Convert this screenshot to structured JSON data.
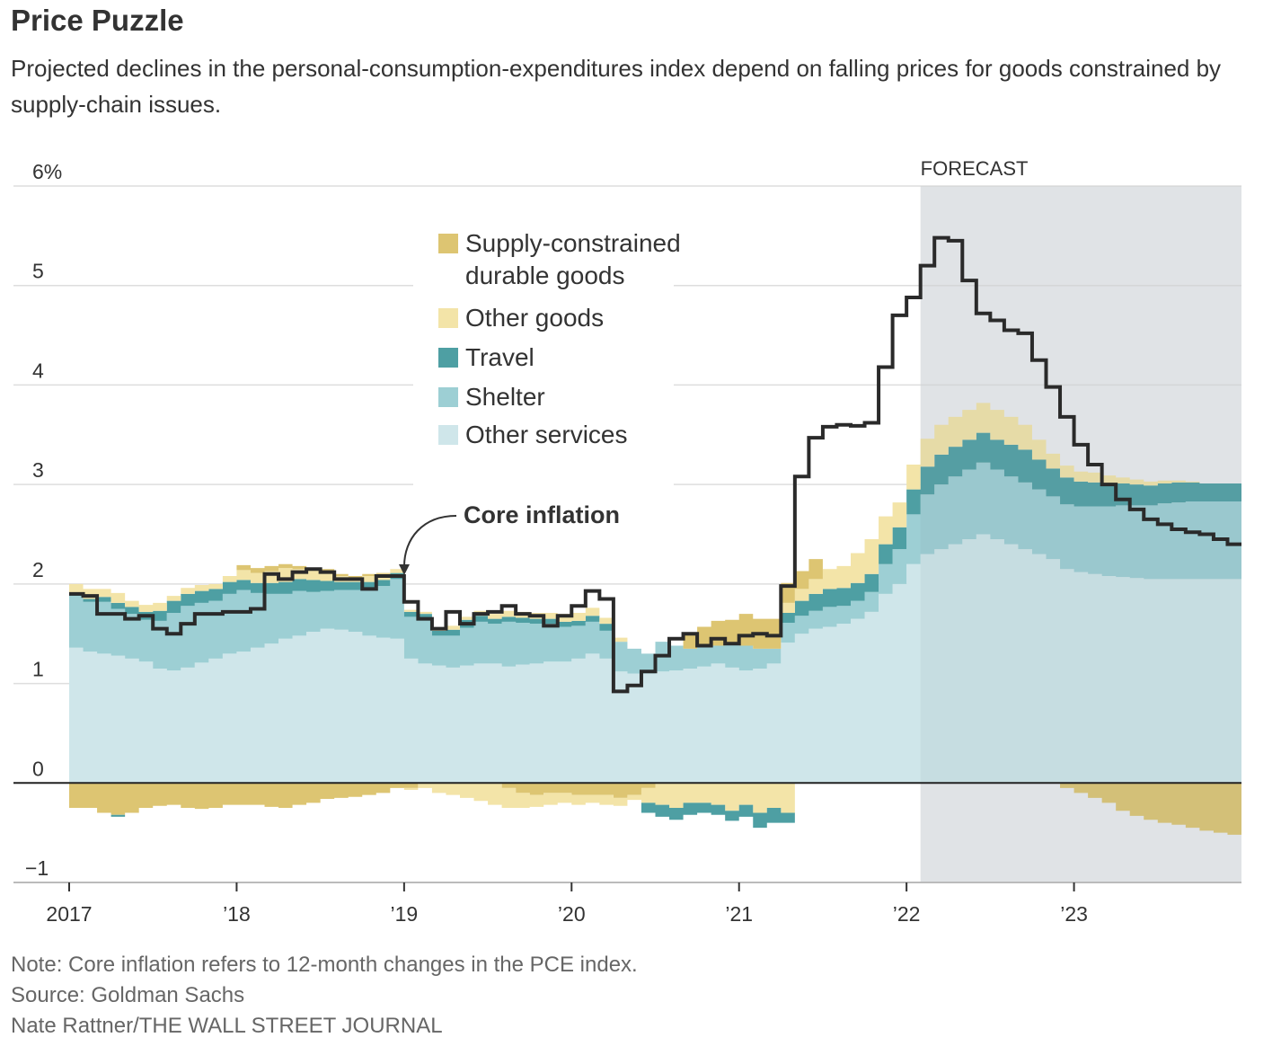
{
  "title": "Price Puzzle",
  "subtitle": "Projected declines in the personal-consumption-expenditures index depend on falling prices for goods constrained by supply-chain issues.",
  "note": "Note: Core inflation refers to 12-month changes in the PCE index.",
  "source": "Source: Goldman Sachs",
  "credit": "Nate Rattner/THE WALL STREET JOURNAL",
  "chart_data": {
    "type": "area",
    "subtype": "stacked-step-area-with-line",
    "x_start": "2017-01",
    "x_end": "2023-12",
    "x_tick_labels": [
      "2017",
      "’18",
      "’19",
      "’20",
      "’21",
      "’22",
      "’23"
    ],
    "y_tick_labels": [
      "6%",
      "5",
      "4",
      "3",
      "2",
      "1",
      "0",
      "−1"
    ],
    "ylim": [
      -1,
      6
    ],
    "grid": true,
    "forecast_label": "FORECAST",
    "forecast_start": "2022-02",
    "line_annotation": "Core inflation",
    "legend_position": "top-center",
    "series": [
      {
        "name": "Other services",
        "color": "#cfe6ea",
        "values": [
          1.36,
          1.32,
          1.3,
          1.28,
          1.25,
          1.22,
          1.15,
          1.13,
          1.16,
          1.21,
          1.25,
          1.3,
          1.32,
          1.36,
          1.4,
          1.45,
          1.48,
          1.52,
          1.55,
          1.54,
          1.52,
          1.48,
          1.46,
          1.45,
          1.25,
          1.2,
          1.18,
          1.16,
          1.18,
          1.2,
          1.2,
          1.17,
          1.19,
          1.2,
          1.22,
          1.22,
          1.25,
          1.3,
          1.25,
          1.12,
          1.1,
          1.1,
          1.12,
          1.13,
          1.15,
          1.17,
          1.2,
          1.16,
          1.13,
          1.15,
          1.2,
          1.41,
          1.5,
          1.55,
          1.57,
          1.6,
          1.65,
          1.72,
          1.9,
          2.0,
          2.2,
          2.3,
          2.35,
          2.4,
          2.45,
          2.5,
          2.45,
          2.4,
          2.35,
          2.3,
          2.25,
          2.15,
          2.12,
          2.1,
          2.08,
          2.07,
          2.06,
          2.05,
          2.05,
          2.05,
          2.05,
          2.05,
          2.05,
          2.05
        ]
      },
      {
        "name": "Shelter",
        "color": "#9dcfd4",
        "values": [
          0.52,
          0.5,
          0.52,
          0.47,
          0.45,
          0.42,
          0.48,
          0.58,
          0.62,
          0.6,
          0.58,
          0.6,
          0.62,
          0.55,
          0.5,
          0.45,
          0.45,
          0.4,
          0.38,
          0.4,
          0.42,
          0.48,
          0.52,
          0.6,
          0.42,
          0.45,
          0.3,
          0.32,
          0.38,
          0.42,
          0.4,
          0.45,
          0.42,
          0.4,
          0.38,
          0.35,
          0.33,
          0.32,
          0.28,
          0.3,
          0.25,
          0.2,
          0.3,
          0.25,
          0.2,
          0.2,
          0.18,
          0.23,
          0.25,
          0.2,
          0.15,
          0.2,
          0.18,
          0.18,
          0.2,
          0.18,
          0.18,
          0.2,
          0.3,
          0.35,
          0.5,
          0.6,
          0.65,
          0.68,
          0.7,
          0.72,
          0.7,
          0.68,
          0.67,
          0.65,
          0.63,
          0.65,
          0.66,
          0.68,
          0.7,
          0.72,
          0.73,
          0.74,
          0.76,
          0.77,
          0.78,
          0.78,
          0.78,
          0.78
        ]
      },
      {
        "name": "Travel",
        "color": "#4e9fa3",
        "values": [
          0.02,
          0.03,
          0.05,
          0.06,
          0.07,
          0.08,
          0.1,
          0.12,
          0.12,
          0.12,
          0.12,
          0.12,
          0.1,
          0.1,
          0.11,
          0.12,
          0.12,
          0.12,
          0.1,
          0.08,
          0.08,
          0.06,
          0.06,
          0.06,
          0.05,
          0.05,
          0.05,
          0.06,
          0.08,
          0.06,
          0.05,
          0.05,
          0.05,
          0.05,
          0.05,
          0.05,
          0.05,
          0.06,
          0.07,
          0.0,
          0.0,
          0.0,
          0.0,
          0.0,
          0.0,
          0.0,
          0.0,
          0.0,
          0.0,
          0.0,
          0.0,
          0.1,
          0.15,
          0.17,
          0.18,
          0.18,
          0.18,
          0.18,
          0.2,
          0.22,
          0.25,
          0.28,
          0.3,
          0.3,
          0.3,
          0.3,
          0.3,
          0.32,
          0.33,
          0.3,
          0.28,
          0.27,
          0.25,
          0.24,
          0.23,
          0.22,
          0.21,
          0.2,
          0.2,
          0.2,
          0.19,
          0.18,
          0.18,
          0.18
        ]
      },
      {
        "name": "Other goods",
        "color": "#f3e4a8",
        "values": [
          0.1,
          0.1,
          0.08,
          0.1,
          0.06,
          0.07,
          0.08,
          0.05,
          0.06,
          0.06,
          0.05,
          0.06,
          0.1,
          0.1,
          0.12,
          0.14,
          0.1,
          0.1,
          0.1,
          0.06,
          0.04,
          0.06,
          0.06,
          0.04,
          0.02,
          0.02,
          0.03,
          0.04,
          0.03,
          0.05,
          0.05,
          0.06,
          0.06,
          0.06,
          0.06,
          0.08,
          0.08,
          0.08,
          0.06,
          0.04,
          0.0,
          0.0,
          0.0,
          0.0,
          0.0,
          0.0,
          0.0,
          0.0,
          0.0,
          0.0,
          0.0,
          0.1,
          0.12,
          0.15,
          0.2,
          0.22,
          0.3,
          0.35,
          0.28,
          0.25,
          0.25,
          0.28,
          0.3,
          0.3,
          0.3,
          0.3,
          0.3,
          0.28,
          0.25,
          0.2,
          0.15,
          0.12,
          0.1,
          0.1,
          0.08,
          0.06,
          0.05,
          0.04,
          0.03,
          0.02,
          0.01,
          0.0,
          0.0,
          0.0
        ]
      },
      {
        "name": "Supply-constrained durable goods",
        "color": "#ddc572",
        "values": [
          0.0,
          0.0,
          0.0,
          0.0,
          0.0,
          0.0,
          0.0,
          0.0,
          0.0,
          0.0,
          0.0,
          0.0,
          0.05,
          0.05,
          0.05,
          0.04,
          0.03,
          0.02,
          0.02,
          0.02,
          0.02,
          0.02,
          0.01,
          0.0,
          0.0,
          0.0,
          0.0,
          0.0,
          0.0,
          0.0,
          0.0,
          0.0,
          0.0,
          0.0,
          0.0,
          0.0,
          0.0,
          0.0,
          0.0,
          0.0,
          0.0,
          0.0,
          0.0,
          0.0,
          0.15,
          0.2,
          0.25,
          0.25,
          0.32,
          0.3,
          0.3,
          0.2,
          0.18,
          0.2,
          0.0,
          0.0,
          0.0,
          0.0,
          0.0,
          0.0,
          0.0,
          0.0,
          0.0,
          0.0,
          0.0,
          0.0,
          0.0,
          0.0,
          0.0,
          0.0,
          0.0,
          0.0,
          0.0,
          0.0,
          0.0,
          0.0,
          0.0,
          0.0,
          0.0,
          0.0,
          0.0,
          0.0,
          0.0,
          0.0
        ]
      }
    ],
    "negative_series": [
      {
        "name": "Supply-constrained durable goods",
        "color": "#ddc572",
        "values": [
          -0.25,
          -0.25,
          -0.3,
          -0.32,
          -0.3,
          -0.25,
          -0.23,
          -0.22,
          -0.25,
          -0.26,
          -0.25,
          -0.22,
          -0.22,
          -0.22,
          -0.24,
          -0.25,
          -0.22,
          -0.2,
          -0.16,
          -0.15,
          -0.14,
          -0.12,
          -0.1,
          -0.05,
          -0.05,
          0.0,
          0.0,
          0.0,
          0.0,
          0.0,
          0.0,
          -0.05,
          -0.1,
          -0.12,
          -0.1,
          -0.1,
          -0.12,
          -0.12,
          -0.12,
          -0.15,
          -0.12,
          -0.05,
          0.0,
          0.0,
          0.0,
          0.0,
          0.0,
          0.0,
          0.0,
          0.0,
          0.0,
          0.0,
          0.0,
          0.0,
          0.0,
          0.0,
          0.0,
          0.0,
          0.0,
          0.0,
          0.0,
          0.0,
          0.0,
          0.0,
          0.0,
          0.0,
          0.0,
          0.0,
          0.0,
          0.0,
          0.0,
          -0.05,
          -0.1,
          -0.15,
          -0.2,
          -0.28,
          -0.33,
          -0.37,
          -0.4,
          -0.42,
          -0.45,
          -0.48,
          -0.5,
          -0.52
        ]
      },
      {
        "name": "Other goods",
        "color": "#f3e4a8",
        "values": [
          0.0,
          0.0,
          0.0,
          0.0,
          0.0,
          0.0,
          0.0,
          0.0,
          0.0,
          0.0,
          0.0,
          0.0,
          0.0,
          0.0,
          0.0,
          0.0,
          0.0,
          0.0,
          0.0,
          0.0,
          0.0,
          0.0,
          0.0,
          0.0,
          -0.02,
          -0.05,
          -0.1,
          -0.12,
          -0.15,
          -0.18,
          -0.22,
          -0.2,
          -0.15,
          -0.12,
          -0.12,
          -0.1,
          -0.1,
          -0.08,
          -0.1,
          -0.08,
          -0.05,
          -0.15,
          -0.22,
          -0.25,
          -0.2,
          -0.2,
          -0.22,
          -0.28,
          -0.22,
          -0.3,
          -0.25,
          -0.3,
          0.0,
          0.0,
          0.0,
          0.0,
          0.0,
          0.0,
          0.0,
          0.0,
          0.0,
          0.0,
          0.0,
          0.0,
          0.0,
          0.0,
          0.0,
          0.0,
          0.0,
          0.0,
          0.0,
          0.0,
          0.0,
          0.0,
          0.0,
          0.0,
          0.0,
          0.0,
          0.0,
          0.0,
          0.0,
          0.0,
          0.0,
          0.0
        ]
      },
      {
        "name": "Travel",
        "color": "#4e9fa3",
        "values": [
          0.0,
          0.0,
          0.0,
          -0.02,
          0.0,
          0.0,
          0.0,
          0.0,
          0.0,
          0.0,
          0.0,
          0.0,
          0.0,
          0.0,
          0.0,
          0.0,
          0.0,
          0.0,
          0.0,
          0.0,
          0.0,
          0.0,
          0.0,
          0.0,
          0.0,
          0.0,
          0.0,
          0.0,
          0.0,
          0.0,
          0.0,
          0.0,
          0.0,
          0.0,
          0.0,
          0.0,
          0.0,
          0.0,
          0.0,
          0.0,
          0.0,
          -0.1,
          -0.12,
          -0.12,
          -0.12,
          -0.1,
          -0.1,
          -0.1,
          -0.12,
          -0.15,
          -0.15,
          -0.1,
          0.0,
          0.0,
          0.0,
          0.0,
          0.0,
          0.0,
          0.0,
          0.0,
          0.0,
          0.0,
          0.0,
          0.0,
          0.0,
          0.0,
          0.0,
          0.0,
          0.0,
          0.0,
          0.0,
          0.0,
          0.0,
          0.0,
          0.0,
          0.0,
          0.0,
          0.0,
          0.0,
          0.0,
          0.0,
          0.0,
          0.0,
          0.0
        ]
      }
    ],
    "line": {
      "name": "Core inflation",
      "color": "#2a2a2a",
      "values": [
        1.9,
        1.88,
        1.7,
        1.7,
        1.65,
        1.68,
        1.55,
        1.5,
        1.6,
        1.7,
        1.7,
        1.72,
        1.72,
        1.75,
        2.1,
        2.05,
        2.12,
        2.15,
        2.12,
        2.05,
        2.05,
        1.95,
        2.08,
        2.08,
        1.82,
        1.65,
        1.55,
        1.72,
        1.6,
        1.7,
        1.72,
        1.78,
        1.7,
        1.68,
        1.58,
        1.68,
        1.78,
        1.93,
        1.85,
        0.92,
        0.98,
        1.12,
        1.28,
        1.45,
        1.5,
        1.38,
        1.45,
        1.4,
        1.48,
        1.5,
        1.48,
        1.98,
        3.08,
        3.47,
        3.58,
        3.6,
        3.59,
        3.62,
        4.18,
        4.7,
        4.88,
        5.2,
        5.48,
        5.45,
        5.05,
        4.72,
        4.65,
        4.55,
        4.52,
        4.25,
        3.98,
        3.68,
        3.4,
        3.2,
        3.0,
        2.85,
        2.75,
        2.65,
        2.6,
        2.55,
        2.52,
        2.5,
        2.45,
        2.4
      ]
    }
  }
}
